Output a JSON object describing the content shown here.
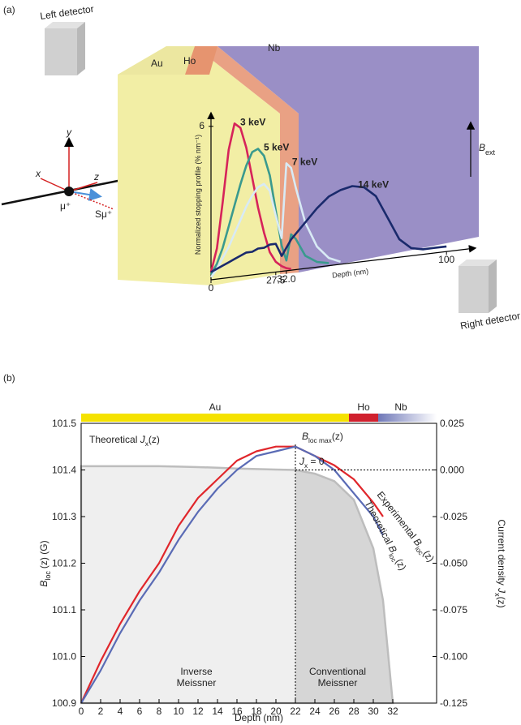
{
  "panel_a": {
    "label": "(a)",
    "left_detector": "Left detector",
    "right_detector": "Right detector",
    "layers": [
      "Au",
      "Ho",
      "Nb"
    ],
    "axis_names": [
      "x",
      "y",
      "z"
    ],
    "muon": "μ⁺",
    "spin": "Sμ⁺",
    "field": [
      "B",
      "ext"
    ]
  },
  "panel_b": {
    "label": "(b)",
    "layers": [
      {
        "name": "Au",
        "from": 0,
        "to": 27.5,
        "color": "#f5e200"
      },
      {
        "name": "Ho",
        "from": 27.5,
        "to": 30.5,
        "color": "#d0202e"
      },
      {
        "name": "Nb",
        "from": 30.5,
        "to": 36.5,
        "color": "#6f78b8"
      }
    ],
    "annotations": {
      "bmax": [
        "B",
        "loc max",
        "(z)"
      ],
      "jzero": [
        "J",
        "x",
        " = 0"
      ],
      "inverse": [
        "Inverse",
        "Meissner"
      ],
      "conventional": [
        "Conventional",
        "Meissner"
      ]
    }
  },
  "chart_data": [
    {
      "type": "line",
      "x_label": "Depth (nm)",
      "y_label": "Normalized stopping profile (% nm⁻¹)",
      "x": [
        0,
        2.5,
        5,
        7.5,
        10,
        12.5,
        15,
        17.5,
        20,
        22.5,
        25,
        27.5,
        30,
        32,
        34,
        36,
        40,
        45,
        50,
        55,
        60,
        65,
        70,
        75,
        80,
        85,
        90,
        95,
        100
      ],
      "xlim": [
        0,
        112
      ],
      "ylim": [
        0,
        6.5
      ],
      "xticks": [
        0,
        27.5,
        {
          "value": 32,
          "label": "32.0"
        },
        100
      ],
      "yticks": [
        6
      ],
      "series": [
        {
          "name": "3 keV",
          "color": "#d6245a",
          "values": [
            0.3,
            1.2,
            3.0,
            5.0,
            6.0,
            5.8,
            5.0,
            3.8,
            2.6,
            1.6,
            0.8,
            0.4,
            0.2,
            0.1,
            0.05,
            null,
            null,
            null,
            null,
            null,
            null,
            null,
            null,
            null,
            null,
            null,
            null,
            null,
            null
          ]
        },
        {
          "name": "5 keV",
          "color": "#3a9a8e",
          "values": [
            0.2,
            0.6,
            1.2,
            2.0,
            2.8,
            3.6,
            4.3,
            4.8,
            4.9,
            4.6,
            3.8,
            2.4,
            1.0,
            0.4,
            1.4,
            1.2,
            0.5,
            0.2,
            0.1,
            null,
            null,
            null,
            null,
            null,
            null,
            null,
            null,
            null,
            null
          ]
        },
        {
          "name": "7 keV",
          "color": "#d8eaf5",
          "values": [
            0.1,
            0.4,
            0.8,
            1.2,
            1.7,
            2.2,
            2.7,
            3.1,
            3.4,
            3.5,
            3.2,
            2.2,
            1.3,
            4.2,
            4.0,
            3.2,
            1.8,
            0.8,
            0.3,
            0.1,
            null,
            null,
            null,
            null,
            null,
            null,
            null,
            null,
            null
          ]
        },
        {
          "name": "14 keV",
          "color": "#1a2a6c",
          "values": [
            0.3,
            0.4,
            0.5,
            0.6,
            0.7,
            0.8,
            0.9,
            0.9,
            1.0,
            1.0,
            1.1,
            1.1,
            0.6,
            0.9,
            1.2,
            1.4,
            1.8,
            2.3,
            2.7,
            2.9,
            3.0,
            2.9,
            2.5,
            1.6,
            0.7,
            0.3,
            0.2,
            0.2,
            0.2
          ]
        }
      ]
    },
    {
      "type": "line",
      "x_label": "Depth (nm)",
      "y_label": [
        "B",
        "loc",
        "(z) (G)"
      ],
      "y2_label": [
        "Current density ",
        "J",
        "x",
        "(z)"
      ],
      "x": [
        0,
        2,
        4,
        6,
        8,
        10,
        12,
        14,
        16,
        18,
        20,
        22,
        24,
        26,
        28,
        30,
        31,
        32
      ],
      "xlim": [
        0,
        36.5
      ],
      "xticks": [
        0,
        2,
        4,
        6,
        8,
        10,
        12,
        14,
        16,
        18,
        20,
        22,
        24,
        26,
        28,
        30,
        32
      ],
      "ylim": [
        100.9,
        101.5
      ],
      "yticks": [
        100.9,
        {
          "value": 101,
          "label": "101.0"
        },
        101.1,
        101.2,
        101.3,
        101.4,
        101.5
      ],
      "y2lim": [
        -0.125,
        0.025
      ],
      "y2ticks": [
        -0.125,
        {
          "value": -0.1,
          "label": "-0.100"
        },
        -0.075,
        {
          "value": -0.05,
          "label": "-0.050"
        },
        -0.025,
        {
          "value": 0,
          "label": "0.000"
        },
        0.025
      ],
      "series": [
        {
          "name": [
            "Theoretical ",
            "J",
            "x",
            "(z)"
          ],
          "color": "#bdbdbd",
          "axis": "y2",
          "values": [
            0.002,
            0.002,
            0.002,
            0.002,
            0.002,
            0.0018,
            0.0015,
            0.0012,
            0.0008,
            0.0005,
            0.0002,
            0,
            -0.002,
            -0.006,
            -0.016,
            -0.042,
            -0.07,
            -0.125
          ]
        },
        {
          "name": [
            "Experimental ",
            "B",
            "loc",
            "(z)"
          ],
          "color": "#e0262b",
          "values": [
            100.9,
            100.99,
            101.07,
            101.14,
            101.2,
            101.28,
            101.34,
            101.38,
            101.42,
            101.44,
            101.45,
            101.45,
            101.43,
            101.41,
            101.38,
            101.33,
            101.3,
            null
          ]
        },
        {
          "name": [
            "Theoretical ",
            "B",
            "loc",
            "(z)"
          ],
          "color": "#5a6bb5",
          "values": [
            100.9,
            100.97,
            101.05,
            101.12,
            101.18,
            101.25,
            101.31,
            101.36,
            101.4,
            101.43,
            101.44,
            101.45,
            101.43,
            101.4,
            101.35,
            101.3,
            101.26,
            null
          ]
        }
      ]
    }
  ]
}
